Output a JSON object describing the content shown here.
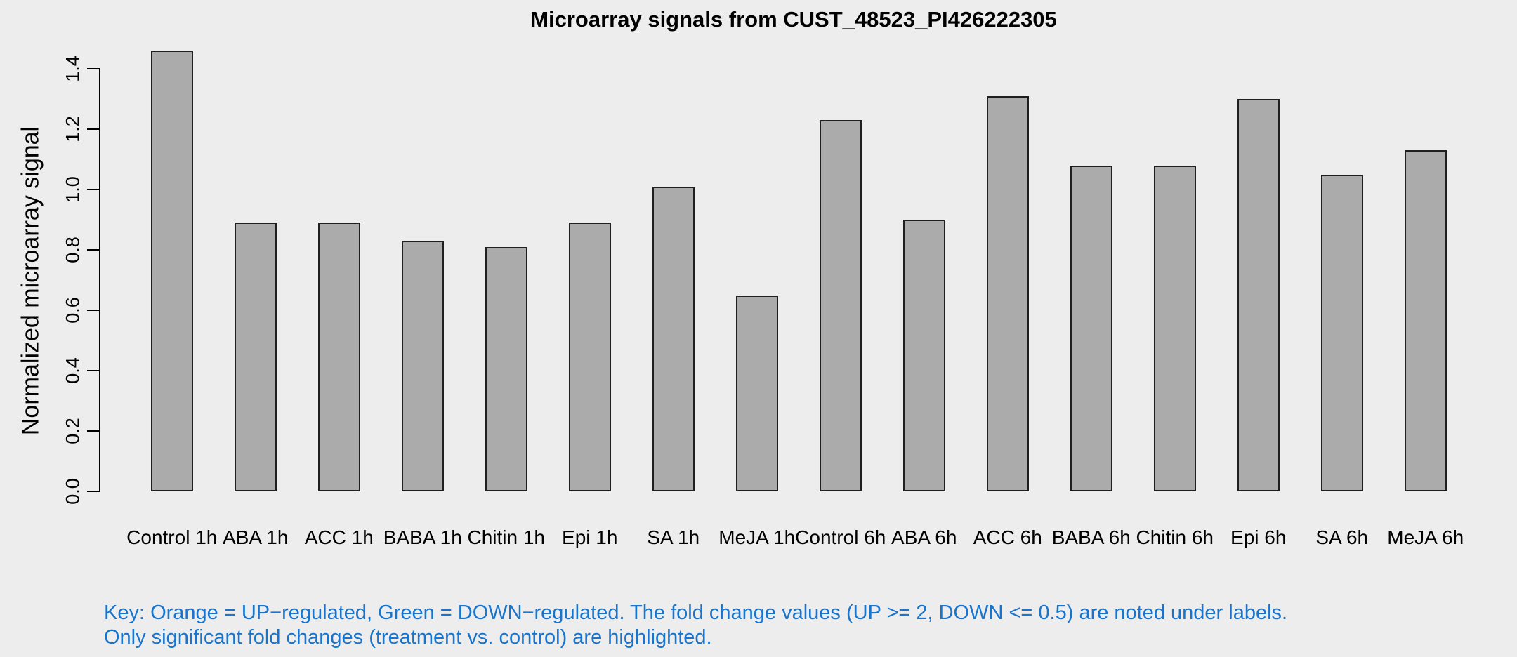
{
  "window": {
    "background_color": "#EDEDED"
  },
  "chart_data": {
    "type": "bar",
    "title": "Microarray signals from CUST_48523_PI426222305",
    "xlabel": "",
    "ylabel": "Normalized microarray signal",
    "ylim": [
      0,
      1.4
    ],
    "ytick_labels": [
      "0.0",
      "0.2",
      "0.4",
      "0.6",
      "0.8",
      "1.0",
      "1.2",
      "1.4"
    ],
    "ytick_values": [
      0.0,
      0.2,
      0.4,
      0.6,
      0.8,
      1.0,
      1.2,
      1.4
    ],
    "grid": "off",
    "legend_position": "none",
    "categories": [
      "Control 1h",
      "ABA 1h",
      "ACC 1h",
      "BABA 1h",
      "Chitin 1h",
      "Epi 1h",
      "SA 1h",
      "MeJA 1h",
      "Control 6h",
      "ABA 6h",
      "ACC 6h",
      "BABA 6h",
      "Chitin 6h",
      "Epi 6h",
      "SA 6h",
      "MeJA 6h"
    ],
    "values": [
      1.46,
      0.89,
      0.89,
      0.83,
      0.81,
      0.89,
      1.01,
      0.65,
      1.23,
      0.9,
      1.31,
      1.08,
      1.08,
      1.3,
      1.05,
      1.13
    ],
    "bar_fill_color": "#ABABAB",
    "bar_border_color": "#1F1F1F",
    "axis_color": "#000000"
  },
  "key": {
    "line1": "Key: Orange = UP−regulated, Green = DOWN−regulated. The fold change values (UP >= 2, DOWN <= 0.5) are noted under labels.",
    "line2": "Only significant fold changes (treatment vs. control) are highlighted.",
    "text_color": "#1874CD"
  }
}
